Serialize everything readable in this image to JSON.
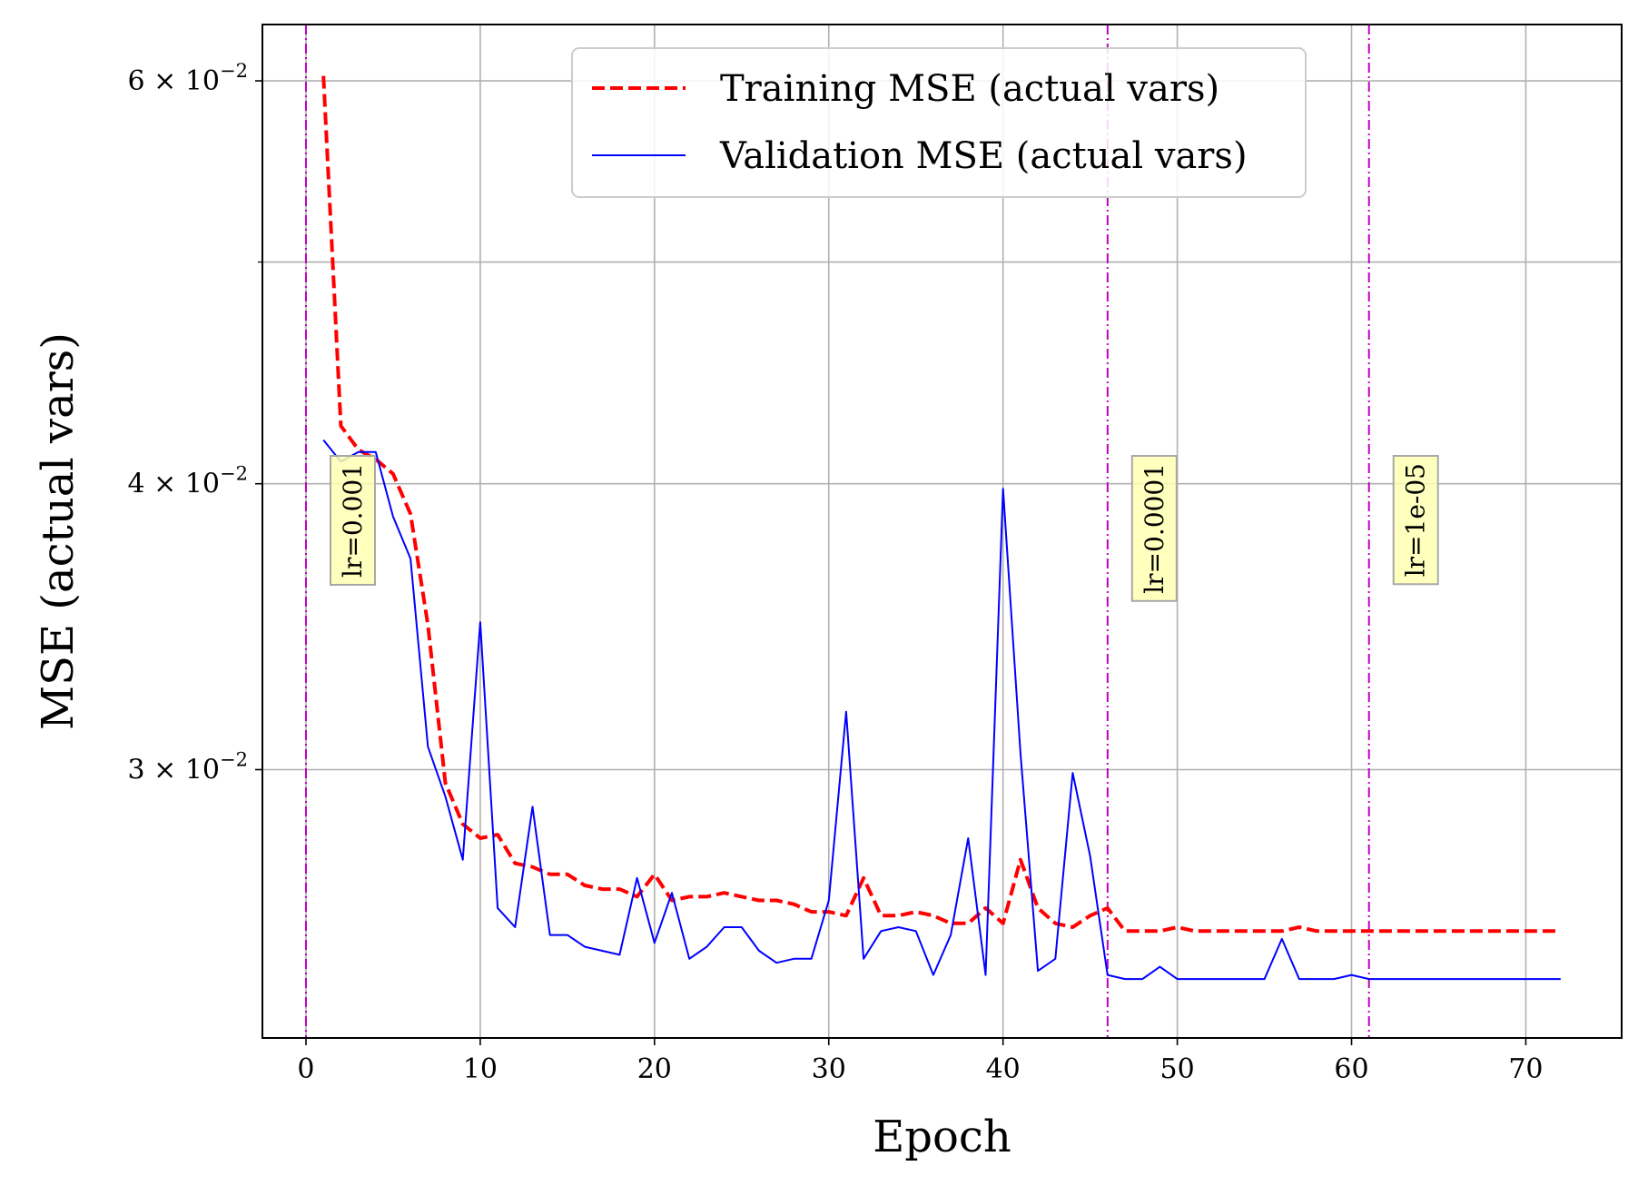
{
  "chart_data": {
    "type": "line",
    "xlabel": "Epoch",
    "ylabel": "MSE (actual vars)",
    "xlim": [
      -2.5,
      75.5
    ],
    "ylim": [
      0.0229,
      0.0635
    ],
    "yscale": "log",
    "grid": true,
    "legend_position": "top-center",
    "x_ticks": [
      0,
      10,
      20,
      30,
      40,
      50,
      60,
      70
    ],
    "y_ticks": [
      {
        "value": 0.03,
        "label_mantissa": "3",
        "label_base": "10",
        "label_exp": "−2"
      },
      {
        "value": 0.04,
        "label_mantissa": "4",
        "label_base": "10",
        "label_exp": "−2"
      },
      {
        "value": 0.06,
        "label_mantissa": "6",
        "label_base": "10",
        "label_exp": "−2"
      }
    ],
    "y_minor_ticks": [
      0.05
    ],
    "series": [
      {
        "name": "Training MSE (actual vars)",
        "color": "#ff0000",
        "style": "dashed",
        "x": [
          1,
          2,
          3,
          4,
          5,
          6,
          7,
          8,
          9,
          10,
          11,
          12,
          13,
          14,
          15,
          16,
          17,
          18,
          19,
          20,
          21,
          22,
          23,
          24,
          25,
          26,
          27,
          28,
          29,
          30,
          31,
          32,
          33,
          34,
          35,
          36,
          37,
          38,
          39,
          40,
          41,
          42,
          43,
          44,
          45,
          46,
          47,
          48,
          49,
          50,
          51,
          52,
          53,
          54,
          55,
          56,
          57,
          58,
          59,
          60,
          61,
          62,
          63,
          64,
          65,
          66,
          67,
          68,
          69,
          70,
          71,
          72
        ],
        "values": [
          0.0603,
          0.0424,
          0.0414,
          0.041,
          0.0404,
          0.0388,
          0.0347,
          0.0296,
          0.0284,
          0.028,
          0.0281,
          0.0273,
          0.0272,
          0.027,
          0.027,
          0.0267,
          0.0266,
          0.0266,
          0.0264,
          0.027,
          0.0263,
          0.0264,
          0.0264,
          0.0265,
          0.0264,
          0.0263,
          0.0263,
          0.0262,
          0.026,
          0.026,
          0.0259,
          0.0269,
          0.0259,
          0.0259,
          0.026,
          0.0259,
          0.0257,
          0.0257,
          0.0261,
          0.0257,
          0.0274,
          0.0261,
          0.0257,
          0.0256,
          0.0259,
          0.0261,
          0.0255,
          0.0255,
          0.0255,
          0.0256,
          0.0255,
          0.0255,
          0.0255,
          0.0255,
          0.0255,
          0.0255,
          0.0256,
          0.0255,
          0.0255,
          0.0255,
          0.0255,
          0.0255,
          0.0255,
          0.0255,
          0.0255,
          0.0255,
          0.0255,
          0.0255,
          0.0255,
          0.0255,
          0.0255,
          0.0255
        ]
      },
      {
        "name": "Validation MSE (actual vars)",
        "color": "#0000ff",
        "style": "solid",
        "x": [
          1,
          2,
          3,
          4,
          5,
          6,
          7,
          8,
          9,
          10,
          11,
          12,
          13,
          14,
          15,
          16,
          17,
          18,
          19,
          20,
          21,
          22,
          23,
          24,
          25,
          26,
          27,
          28,
          29,
          30,
          31,
          32,
          33,
          34,
          35,
          36,
          37,
          38,
          39,
          40,
          41,
          42,
          43,
          44,
          45,
          46,
          47,
          48,
          49,
          50,
          51,
          52,
          53,
          54,
          55,
          56,
          57,
          58,
          59,
          60,
          61,
          62,
          63,
          64,
          65,
          66,
          67,
          68,
          69,
          70,
          71,
          72
        ],
        "values": [
          0.0418,
          0.0409,
          0.0413,
          0.0413,
          0.0387,
          0.0371,
          0.0307,
          0.0292,
          0.0274,
          0.0348,
          0.0261,
          0.0256,
          0.0289,
          0.0254,
          0.0254,
          0.0251,
          0.025,
          0.0249,
          0.0269,
          0.0252,
          0.0265,
          0.0248,
          0.0251,
          0.0256,
          0.0256,
          0.025,
          0.0247,
          0.0248,
          0.0248,
          0.0263,
          0.0318,
          0.0248,
          0.0255,
          0.0256,
          0.0255,
          0.0244,
          0.0254,
          0.028,
          0.0244,
          0.0398,
          0.0305,
          0.0245,
          0.0248,
          0.0299,
          0.0275,
          0.0244,
          0.0243,
          0.0243,
          0.0246,
          0.0243,
          0.0243,
          0.0243,
          0.0243,
          0.0243,
          0.0243,
          0.0253,
          0.0243,
          0.0243,
          0.0243,
          0.0244,
          0.0243,
          0.0243,
          0.0243,
          0.0243,
          0.0243,
          0.0243,
          0.0243,
          0.0243,
          0.0243,
          0.0243,
          0.0243,
          0.0243
        ]
      }
    ],
    "vlines": [
      {
        "x": 0,
        "label": "lr=0.001",
        "color": "#bf00bf"
      },
      {
        "x": 46,
        "label": "lr=0.0001",
        "color": "#bf00bf"
      },
      {
        "x": 61,
        "label": "lr=1e-05",
        "color": "#bf00bf"
      }
    ]
  }
}
